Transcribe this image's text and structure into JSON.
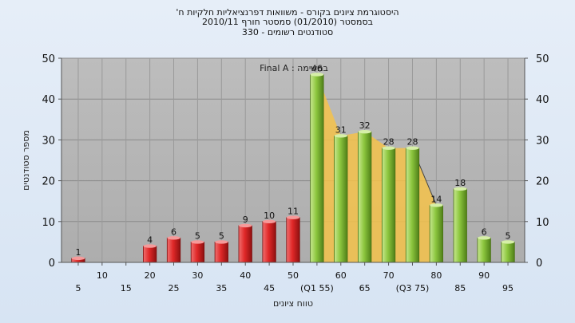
{
  "chart_data": {
    "type": "bar",
    "title_lines": [
      "'היסטוגרמת ציונים בקורס - משוואות דפרנציאליות חלקיות ח",
      "בסמסטר (01/2010) סמסטר חורף 2010/11",
      "330 - סטודנטים רשומים"
    ],
    "series_label": "Final A : במשימה",
    "xlabel": "טווח ציונים",
    "ylabel": "מספר סטודנטים",
    "ylim": [
      0,
      50
    ],
    "yticks": [
      0,
      10,
      20,
      30,
      40,
      50
    ],
    "categories": [
      "5",
      "10",
      "15",
      "20",
      "25",
      "30",
      "35",
      "40",
      "45",
      "50",
      "(Q1 55)",
      "60",
      "65",
      "70",
      "(Q3 75)",
      "80",
      "85",
      "90",
      "95"
    ],
    "values": [
      1,
      0,
      0,
      4,
      6,
      5,
      5,
      9,
      10,
      11,
      46,
      31,
      32,
      28,
      28,
      14,
      18,
      6,
      5
    ],
    "value_labels": [
      "1",
      "",
      "",
      "4",
      "6",
      "5",
      "5",
      "9",
      "10",
      "11",
      "46",
      "31",
      "32",
      "28",
      "28",
      "14",
      "18",
      "6",
      "5"
    ],
    "bar_colors": [
      "#d42a2a",
      "#d42a2a",
      "#d42a2a",
      "#d42a2a",
      "#d42a2a",
      "#d42a2a",
      "#d42a2a",
      "#d42a2a",
      "#d42a2a",
      "#d42a2a",
      "#8cc63e",
      "#8cc63e",
      "#8cc63e",
      "#8cc63e",
      "#8cc63e",
      "#8cc63e",
      "#8cc63e",
      "#8cc63e",
      "#8cc63e"
    ],
    "iqr_range": [
      "(Q1 55)",
      "(Q3 75)"
    ],
    "grid": true,
    "colors": {
      "low": "#d42a2a",
      "high": "#8cc63e",
      "iqr_fill": "#f5c24a",
      "plot_bg": "#b4b4b4"
    }
  }
}
